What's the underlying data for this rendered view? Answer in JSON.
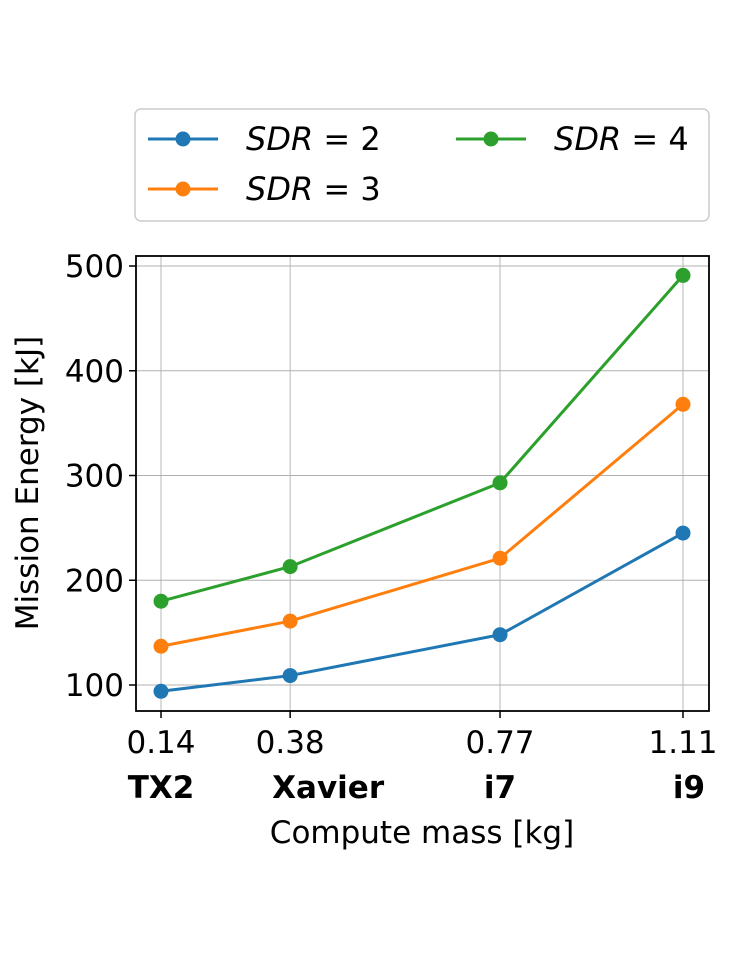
{
  "chart_data": {
    "type": "line",
    "xlabel": "Compute mass [kg]",
    "ylabel": "Mission Energy [kJ]",
    "x": [
      0.14,
      0.38,
      0.77,
      1.11
    ],
    "x_tick_labels": [
      "0.14",
      "0.38",
      "0.77",
      "1.11"
    ],
    "x_category_labels": [
      "TX2",
      "Xavier",
      "i7",
      "i9"
    ],
    "y_ticks": [
      100,
      200,
      300,
      400,
      500
    ],
    "xlim": [
      0.1,
      1.15
    ],
    "ylim": [
      75,
      512
    ],
    "grid": true,
    "legend_position": "top",
    "series": [
      {
        "name": "SDR = 2",
        "var": "SDR",
        "eq": "=",
        "val": "2",
        "color": "#1f77b4",
        "values": [
          94,
          109,
          148,
          245
        ]
      },
      {
        "name": "SDR = 3",
        "var": "SDR",
        "eq": "=",
        "val": "3",
        "color": "#ff7f0e",
        "values": [
          137,
          161,
          221,
          368
        ]
      },
      {
        "name": "SDR = 4",
        "var": "SDR",
        "eq": "=",
        "val": "4",
        "color": "#2ca02c",
        "values": [
          180,
          213,
          293,
          491
        ]
      }
    ]
  }
}
